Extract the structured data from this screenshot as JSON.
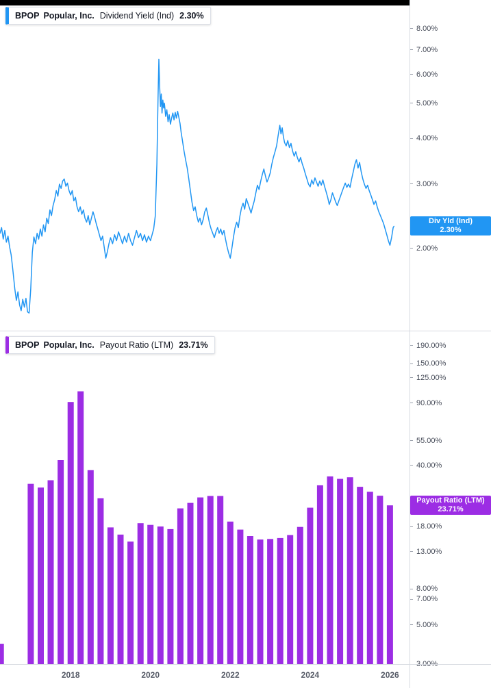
{
  "time_axis": {
    "xlim": [
      2016.23,
      2026.49
    ],
    "ticks": [
      {
        "value": 2018,
        "label": "2018"
      },
      {
        "value": 2020,
        "label": "2020"
      },
      {
        "value": 2022,
        "label": "2022"
      },
      {
        "value": 2024,
        "label": "2024"
      },
      {
        "value": 2026,
        "label": "2026"
      }
    ]
  },
  "chart_data": [
    {
      "type": "line",
      "pane": 0,
      "legend": {
        "ticker": "BPOP",
        "company": "Popular, Inc.",
        "indicator": "Dividend Yield (Ind)",
        "value": "2.30%"
      },
      "color": "#2196f3",
      "scale": "log",
      "grid": false,
      "legend_position": "top-left",
      "ylim": [
        1.19,
        9.59
      ],
      "yticks": [
        {
          "value": 8,
          "label": "8.00%"
        },
        {
          "value": 7,
          "label": "7.00%"
        },
        {
          "value": 6,
          "label": "6.00%"
        },
        {
          "value": 5,
          "label": "5.00%"
        },
        {
          "value": 4,
          "label": "4.00%"
        },
        {
          "value": 3,
          "label": "3.00%"
        },
        {
          "value": 2,
          "label": "2.00%"
        }
      ],
      "axis_badge": {
        "line1": "Div Yld (Ind)",
        "line2": "2.30%",
        "value": 2.3,
        "color": "#2196f3"
      },
      "points": [
        [
          2016.23,
          2.2
        ],
        [
          2016.27,
          2.28
        ],
        [
          2016.31,
          2.12
        ],
        [
          2016.35,
          2.24
        ],
        [
          2016.39,
          2.08
        ],
        [
          2016.43,
          2.16
        ],
        [
          2016.47,
          2.02
        ],
        [
          2016.51,
          1.92
        ],
        [
          2016.55,
          1.75
        ],
        [
          2016.6,
          1.55
        ],
        [
          2016.64,
          1.44
        ],
        [
          2016.68,
          1.52
        ],
        [
          2016.72,
          1.4
        ],
        [
          2016.76,
          1.35
        ],
        [
          2016.8,
          1.45
        ],
        [
          2016.84,
          1.38
        ],
        [
          2016.88,
          1.46
        ],
        [
          2016.92,
          1.34
        ],
        [
          2016.96,
          1.33
        ],
        [
          2017.0,
          1.55
        ],
        [
          2017.04,
          1.95
        ],
        [
          2017.08,
          2.15
        ],
        [
          2017.12,
          2.06
        ],
        [
          2017.16,
          2.2
        ],
        [
          2017.2,
          2.12
        ],
        [
          2017.24,
          2.26
        ],
        [
          2017.28,
          2.16
        ],
        [
          2017.32,
          2.32
        ],
        [
          2017.36,
          2.22
        ],
        [
          2017.4,
          2.42
        ],
        [
          2017.44,
          2.34
        ],
        [
          2017.48,
          2.55
        ],
        [
          2017.52,
          2.46
        ],
        [
          2017.56,
          2.62
        ],
        [
          2017.6,
          2.72
        ],
        [
          2017.64,
          2.88
        ],
        [
          2017.68,
          2.78
        ],
        [
          2017.72,
          3.0
        ],
        [
          2017.76,
          2.92
        ],
        [
          2017.8,
          3.06
        ],
        [
          2017.84,
          3.1
        ],
        [
          2017.88,
          2.96
        ],
        [
          2017.92,
          3.02
        ],
        [
          2017.96,
          2.88
        ],
        [
          2018.0,
          2.8
        ],
        [
          2018.04,
          2.88
        ],
        [
          2018.08,
          2.7
        ],
        [
          2018.12,
          2.76
        ],
        [
          2018.16,
          2.6
        ],
        [
          2018.2,
          2.52
        ],
        [
          2018.24,
          2.6
        ],
        [
          2018.28,
          2.48
        ],
        [
          2018.32,
          2.55
        ],
        [
          2018.36,
          2.42
        ],
        [
          2018.4,
          2.36
        ],
        [
          2018.44,
          2.46
        ],
        [
          2018.48,
          2.32
        ],
        [
          2018.52,
          2.42
        ],
        [
          2018.56,
          2.52
        ],
        [
          2018.6,
          2.44
        ],
        [
          2018.64,
          2.34
        ],
        [
          2018.68,
          2.26
        ],
        [
          2018.72,
          2.18
        ],
        [
          2018.76,
          2.1
        ],
        [
          2018.8,
          2.16
        ],
        [
          2018.84,
          2.02
        ],
        [
          2018.88,
          1.88
        ],
        [
          2018.92,
          1.96
        ],
        [
          2018.96,
          2.06
        ],
        [
          2019.0,
          2.14
        ],
        [
          2019.05,
          2.06
        ],
        [
          2019.1,
          2.18
        ],
        [
          2019.15,
          2.1
        ],
        [
          2019.2,
          2.22
        ],
        [
          2019.25,
          2.14
        ],
        [
          2019.3,
          2.06
        ],
        [
          2019.35,
          2.16
        ],
        [
          2019.4,
          2.08
        ],
        [
          2019.45,
          2.2
        ],
        [
          2019.5,
          2.1
        ],
        [
          2019.55,
          2.04
        ],
        [
          2019.6,
          2.14
        ],
        [
          2019.65,
          2.24
        ],
        [
          2019.7,
          2.14
        ],
        [
          2019.75,
          2.2
        ],
        [
          2019.8,
          2.1
        ],
        [
          2019.85,
          2.18
        ],
        [
          2019.9,
          2.08
        ],
        [
          2019.95,
          2.16
        ],
        [
          2020.0,
          2.1
        ],
        [
          2020.04,
          2.18
        ],
        [
          2020.08,
          2.26
        ],
        [
          2020.12,
          2.45
        ],
        [
          2020.16,
          3.4
        ],
        [
          2020.19,
          5.2
        ],
        [
          2020.21,
          6.6
        ],
        [
          2020.23,
          5.6
        ],
        [
          2020.25,
          4.9
        ],
        [
          2020.27,
          5.3
        ],
        [
          2020.29,
          4.7
        ],
        [
          2020.31,
          5.1
        ],
        [
          2020.33,
          4.85
        ],
        [
          2020.35,
          5.0
        ],
        [
          2020.38,
          4.6
        ],
        [
          2020.41,
          4.8
        ],
        [
          2020.44,
          4.45
        ],
        [
          2020.47,
          4.65
        ],
        [
          2020.5,
          4.38
        ],
        [
          2020.53,
          4.55
        ],
        [
          2020.56,
          4.7
        ],
        [
          2020.59,
          4.5
        ],
        [
          2020.62,
          4.72
        ],
        [
          2020.65,
          4.55
        ],
        [
          2020.68,
          4.75
        ],
        [
          2020.71,
          4.58
        ],
        [
          2020.74,
          4.4
        ],
        [
          2020.77,
          4.15
        ],
        [
          2020.8,
          3.95
        ],
        [
          2020.84,
          3.7
        ],
        [
          2020.88,
          3.5
        ],
        [
          2020.92,
          3.32
        ],
        [
          2020.96,
          3.1
        ],
        [
          2021.0,
          2.88
        ],
        [
          2021.04,
          2.68
        ],
        [
          2021.08,
          2.54
        ],
        [
          2021.12,
          2.6
        ],
        [
          2021.16,
          2.46
        ],
        [
          2021.2,
          2.36
        ],
        [
          2021.24,
          2.42
        ],
        [
          2021.28,
          2.32
        ],
        [
          2021.32,
          2.4
        ],
        [
          2021.36,
          2.52
        ],
        [
          2021.4,
          2.58
        ],
        [
          2021.44,
          2.46
        ],
        [
          2021.48,
          2.34
        ],
        [
          2021.52,
          2.26
        ],
        [
          2021.56,
          2.2
        ],
        [
          2021.6,
          2.14
        ],
        [
          2021.64,
          2.22
        ],
        [
          2021.68,
          2.28
        ],
        [
          2021.72,
          2.2
        ],
        [
          2021.76,
          2.26
        ],
        [
          2021.8,
          2.18
        ],
        [
          2021.84,
          2.24
        ],
        [
          2021.88,
          2.12
        ],
        [
          2021.92,
          2.02
        ],
        [
          2021.96,
          1.94
        ],
        [
          2022.0,
          1.88
        ],
        [
          2022.04,
          2.0
        ],
        [
          2022.08,
          2.15
        ],
        [
          2022.12,
          2.28
        ],
        [
          2022.16,
          2.36
        ],
        [
          2022.2,
          2.28
        ],
        [
          2022.24,
          2.45
        ],
        [
          2022.28,
          2.58
        ],
        [
          2022.32,
          2.66
        ],
        [
          2022.36,
          2.56
        ],
        [
          2022.4,
          2.74
        ],
        [
          2022.44,
          2.66
        ],
        [
          2022.48,
          2.58
        ],
        [
          2022.52,
          2.5
        ],
        [
          2022.56,
          2.6
        ],
        [
          2022.6,
          2.7
        ],
        [
          2022.64,
          2.84
        ],
        [
          2022.68,
          2.98
        ],
        [
          2022.72,
          2.9
        ],
        [
          2022.76,
          3.05
        ],
        [
          2022.8,
          3.18
        ],
        [
          2022.84,
          3.3
        ],
        [
          2022.88,
          3.16
        ],
        [
          2022.92,
          3.04
        ],
        [
          2022.96,
          3.12
        ],
        [
          2023.0,
          3.22
        ],
        [
          2023.04,
          3.4
        ],
        [
          2023.08,
          3.55
        ],
        [
          2023.12,
          3.68
        ],
        [
          2023.16,
          3.82
        ],
        [
          2023.2,
          4.08
        ],
        [
          2023.24,
          4.35
        ],
        [
          2023.27,
          4.12
        ],
        [
          2023.3,
          4.28
        ],
        [
          2023.33,
          4.05
        ],
        [
          2023.36,
          3.9
        ],
        [
          2023.4,
          3.82
        ],
        [
          2023.44,
          3.95
        ],
        [
          2023.48,
          3.78
        ],
        [
          2023.52,
          3.88
        ],
        [
          2023.56,
          3.7
        ],
        [
          2023.6,
          3.58
        ],
        [
          2023.64,
          3.68
        ],
        [
          2023.68,
          3.55
        ],
        [
          2023.72,
          3.45
        ],
        [
          2023.76,
          3.55
        ],
        [
          2023.8,
          3.42
        ],
        [
          2023.84,
          3.32
        ],
        [
          2023.88,
          3.2
        ],
        [
          2023.92,
          3.1
        ],
        [
          2023.96,
          3.0
        ],
        [
          2024.0,
          2.95
        ],
        [
          2024.04,
          3.08
        ],
        [
          2024.08,
          3.0
        ],
        [
          2024.12,
          3.12
        ],
        [
          2024.16,
          3.04
        ],
        [
          2024.2,
          2.96
        ],
        [
          2024.24,
          3.06
        ],
        [
          2024.28,
          2.98
        ],
        [
          2024.32,
          3.08
        ],
        [
          2024.36,
          2.96
        ],
        [
          2024.4,
          2.86
        ],
        [
          2024.44,
          2.76
        ],
        [
          2024.48,
          2.64
        ],
        [
          2024.52,
          2.72
        ],
        [
          2024.56,
          2.84
        ],
        [
          2024.6,
          2.76
        ],
        [
          2024.64,
          2.68
        ],
        [
          2024.68,
          2.62
        ],
        [
          2024.72,
          2.7
        ],
        [
          2024.76,
          2.78
        ],
        [
          2024.8,
          2.86
        ],
        [
          2024.84,
          2.94
        ],
        [
          2024.88,
          3.02
        ],
        [
          2024.92,
          2.94
        ],
        [
          2024.96,
          3.0
        ],
        [
          2025.0,
          2.94
        ],
        [
          2025.04,
          3.1
        ],
        [
          2025.08,
          3.24
        ],
        [
          2025.12,
          3.4
        ],
        [
          2025.16,
          3.5
        ],
        [
          2025.2,
          3.32
        ],
        [
          2025.24,
          3.44
        ],
        [
          2025.28,
          3.24
        ],
        [
          2025.32,
          3.1
        ],
        [
          2025.36,
          3.0
        ],
        [
          2025.4,
          2.92
        ],
        [
          2025.44,
          2.98
        ],
        [
          2025.48,
          2.88
        ],
        [
          2025.52,
          2.8
        ],
        [
          2025.56,
          2.72
        ],
        [
          2025.6,
          2.64
        ],
        [
          2025.64,
          2.7
        ],
        [
          2025.68,
          2.6
        ],
        [
          2025.72,
          2.52
        ],
        [
          2025.76,
          2.46
        ],
        [
          2025.8,
          2.4
        ],
        [
          2025.84,
          2.34
        ],
        [
          2025.88,
          2.26
        ],
        [
          2025.92,
          2.18
        ],
        [
          2025.96,
          2.1
        ],
        [
          2026.0,
          2.04
        ],
        [
          2026.04,
          2.14
        ],
        [
          2026.08,
          2.28
        ],
        [
          2026.1,
          2.3
        ]
      ]
    },
    {
      "type": "bar",
      "pane": 1,
      "legend": {
        "ticker": "BPOP",
        "company": "Popular, Inc.",
        "indicator": "Payout Ratio (LTM)",
        "value": "23.71%"
      },
      "color": "#9c2de4",
      "scale": "log",
      "grid": false,
      "legend_position": "top-left",
      "ylim": [
        3.0,
        231
      ],
      "yticks": [
        {
          "value": 190,
          "label": "190.00%"
        },
        {
          "value": 150,
          "label": "150.00%"
        },
        {
          "value": 125,
          "label": "125.00%"
        },
        {
          "value": 90,
          "label": "90.00%"
        },
        {
          "value": 55,
          "label": "55.00%"
        },
        {
          "value": 40,
          "label": "40.00%"
        },
        {
          "value": 18,
          "label": "18.00%"
        },
        {
          "value": 13,
          "label": "13.00%"
        },
        {
          "value": 8,
          "label": "8.00%"
        },
        {
          "value": 7,
          "label": "7.00%"
        },
        {
          "value": 5,
          "label": "5.00%"
        },
        {
          "value": 3,
          "label": "3.00%"
        }
      ],
      "axis_badge": {
        "line1": "Payout Ratio (LTM)",
        "line2": "23.71%",
        "value": 23.71,
        "color": "#9c2de4"
      },
      "bars": [
        [
          2016.25,
          3.9
        ],
        [
          2017.0,
          31.4
        ],
        [
          2017.25,
          29.9
        ],
        [
          2017.5,
          32.9
        ],
        [
          2017.75,
          42.8
        ],
        [
          2018.0,
          91.2
        ],
        [
          2018.25,
          104.8
        ],
        [
          2018.5,
          37.5
        ],
        [
          2018.75,
          26.0
        ],
        [
          2019.0,
          17.8
        ],
        [
          2019.25,
          16.2
        ],
        [
          2019.5,
          14.8
        ],
        [
          2019.75,
          18.8
        ],
        [
          2020.0,
          18.4
        ],
        [
          2020.25,
          18.0
        ],
        [
          2020.5,
          17.4
        ],
        [
          2020.75,
          22.8
        ],
        [
          2021.0,
          24.5
        ],
        [
          2021.25,
          26.3
        ],
        [
          2021.5,
          26.8
        ],
        [
          2021.75,
          26.8
        ],
        [
          2022.0,
          19.2
        ],
        [
          2022.25,
          17.3
        ],
        [
          2022.5,
          15.9
        ],
        [
          2022.75,
          15.2
        ],
        [
          2023.0,
          15.3
        ],
        [
          2023.25,
          15.5
        ],
        [
          2023.5,
          16.1
        ],
        [
          2023.75,
          17.9
        ],
        [
          2024.0,
          23.0
        ],
        [
          2024.25,
          30.8
        ],
        [
          2024.5,
          34.6
        ],
        [
          2024.75,
          33.5
        ],
        [
          2025.0,
          34.2
        ],
        [
          2025.25,
          30.2
        ],
        [
          2025.5,
          28.3
        ],
        [
          2025.75,
          26.9
        ],
        [
          2026.0,
          23.71
        ]
      ]
    }
  ]
}
